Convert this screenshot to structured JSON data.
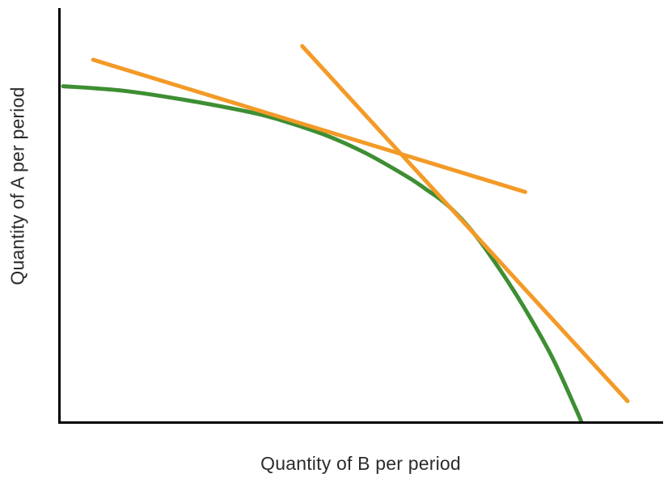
{
  "figure": {
    "background": "#ffffff",
    "axis_color": "#000000",
    "text_color": "#2b2b2b"
  },
  "chart_data": {
    "type": "line",
    "title": "",
    "xlabel": "Quantity of B per period",
    "ylabel": "Quantity of A per period",
    "xlim": [
      0,
      100
    ],
    "ylim": [
      0,
      100
    ],
    "grid": false,
    "tick_labels": "none",
    "legend": "none",
    "description": "Concave production possibilities curve for goods A and B with two straight tangent lines: a flatter tangent touching the upper-left portion of the curve and a steeper tangent touching the lower-right portion; the tangents cross each other between the two tangency points.",
    "series": [
      {
        "name": "production-possibilities-curve",
        "type": "smooth-curve",
        "color": "#3e8e33",
        "stroke_width": 5,
        "points": [
          [
            0.4,
            81.1
          ],
          [
            10.4,
            80.0
          ],
          [
            20.5,
            77.8
          ],
          [
            30.5,
            75.1
          ],
          [
            35.8,
            73.2
          ],
          [
            43.9,
            69.3
          ],
          [
            50.5,
            65.0
          ],
          [
            57.2,
            59.5
          ],
          [
            60.6,
            56.2
          ],
          [
            63.9,
            52.7
          ],
          [
            67.2,
            47.9
          ],
          [
            70.6,
            41.6
          ],
          [
            75.9,
            30.0
          ],
          [
            81.3,
            16.3
          ],
          [
            85.3,
            3.7
          ],
          [
            86.4,
            0.0
          ]
        ]
      },
      {
        "name": "tangent-line-flat",
        "type": "straight-line",
        "color": "#f39a27",
        "stroke_width": 5,
        "points": [
          [
            5.4,
            87.5
          ],
          [
            77.1,
            55.5
          ]
        ]
      },
      {
        "name": "tangent-line-steep",
        "type": "straight-line",
        "color": "#f39a27",
        "stroke_width": 5,
        "points": [
          [
            40.1,
            90.8
          ],
          [
            94.1,
            4.9
          ]
        ]
      }
    ]
  }
}
